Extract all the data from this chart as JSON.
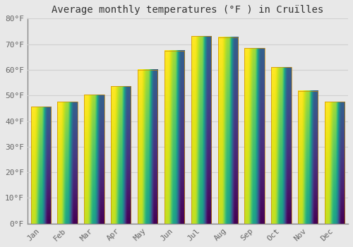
{
  "title": "Average monthly temperatures (°F ) in Cruïlles",
  "months": [
    "Jan",
    "Feb",
    "Mar",
    "Apr",
    "May",
    "Jun",
    "Jul",
    "Aug",
    "Sep",
    "Oct",
    "Nov",
    "Dec"
  ],
  "values": [
    45.7,
    47.5,
    50.2,
    53.6,
    60.1,
    67.5,
    73.2,
    72.7,
    68.4,
    61.0,
    51.8,
    47.5
  ],
  "bar_color_top": "#FFCC44",
  "bar_color_bottom": "#E8940A",
  "bar_color_mid": "#FFB300",
  "ylim": [
    0,
    80
  ],
  "yticks": [
    0,
    10,
    20,
    30,
    40,
    50,
    60,
    70,
    80
  ],
  "ytick_labels": [
    "0°F",
    "10°F",
    "20°F",
    "30°F",
    "40°F",
    "50°F",
    "60°F",
    "70°F",
    "80°F"
  ],
  "bg_color": "#e8e8e8",
  "grid_color": "#d0d0d0",
  "title_fontsize": 10,
  "tick_fontsize": 8,
  "font_family": "monospace",
  "bar_width": 0.75
}
